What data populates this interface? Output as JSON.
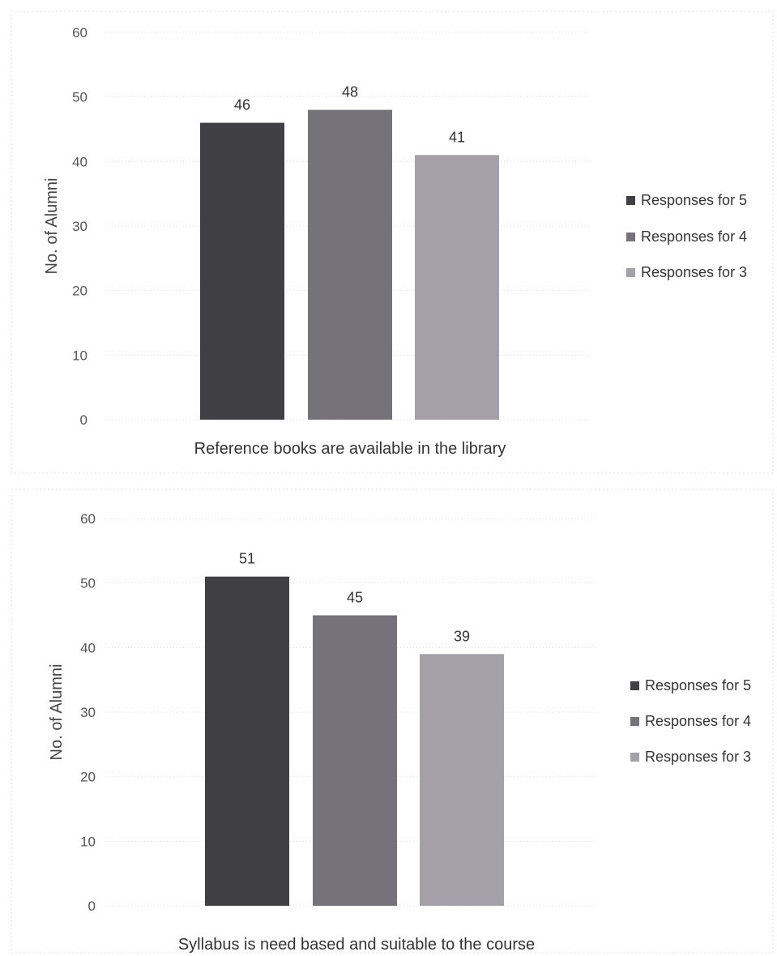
{
  "colors": {
    "responses_5": "#3f3f44",
    "responses_4": "#757379",
    "responses_3": "#a3a0a9"
  },
  "chart_data": [
    {
      "type": "bar",
      "categories": [
        "Reference books are available in the library"
      ],
      "series": [
        {
          "name": "Responses for 5",
          "values": [
            46
          ]
        },
        {
          "name": "Responses for 4",
          "values": [
            48
          ]
        },
        {
          "name": "Responses for 3",
          "values": [
            41
          ]
        }
      ],
      "xlabel": "Reference books are available in the library",
      "ylabel": "No. of Alumni",
      "ylim": [
        0,
        60
      ],
      "yticks": [
        "0",
        "10",
        "20",
        "30",
        "40",
        "50",
        "60"
      ],
      "data_labels": [
        "46",
        "48",
        "41"
      ],
      "grid": true,
      "legend_position": "right"
    },
    {
      "type": "bar",
      "categories": [
        "Syllabus is need based and suitable to the course"
      ],
      "series": [
        {
          "name": "Responses for 5",
          "values": [
            51
          ]
        },
        {
          "name": "Responses for 4",
          "values": [
            45
          ]
        },
        {
          "name": "Responses for 3",
          "values": [
            39
          ]
        }
      ],
      "xlabel": "Syllabus is need based and suitable to the course",
      "ylabel": "No. of Alumni",
      "ylim": [
        0,
        60
      ],
      "yticks": [
        "0",
        "10",
        "20",
        "30",
        "40",
        "50",
        "60"
      ],
      "data_labels": [
        "51",
        "45",
        "39"
      ],
      "grid": true,
      "legend_position": "right"
    }
  ]
}
